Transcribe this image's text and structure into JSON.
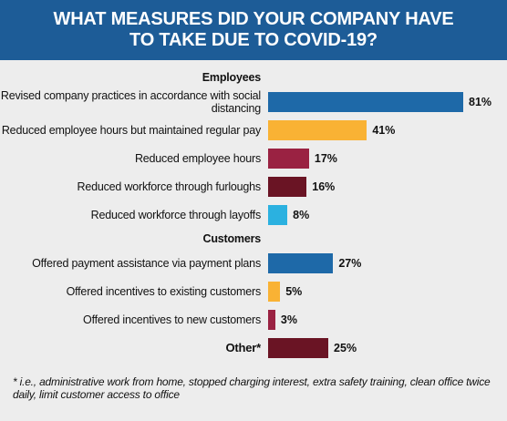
{
  "chart_data": {
    "type": "bar",
    "title": "WHAT MEASURES DID YOUR COMPANY HAVE TO TAKE DUE TO COVID-19?",
    "groups": [
      {
        "name": "Employees",
        "categories": [
          "Revised company practices in accordance with social distancing",
          "Reduced employee hours but maintained regular pay",
          "Reduced employee hours",
          "Reduced workforce through furloughs",
          "Reduced workforce through layoffs"
        ],
        "values": [
          81,
          41,
          17,
          16,
          8
        ],
        "value_labels": [
          "81%",
          "41%",
          "17%",
          "16%",
          "8%"
        ],
        "colors": [
          "#1e69a8",
          "#f9b234",
          "#9a2242",
          "#6a1424",
          "#2bb1e0"
        ]
      },
      {
        "name": "Customers",
        "categories": [
          "Offered payment assistance via payment plans",
          "Offered incentives to existing customers",
          "Offered incentives to new customers"
        ],
        "values": [
          27,
          5,
          3
        ],
        "value_labels": [
          "27%",
          "5%",
          "3%"
        ],
        "colors": [
          "#1e69a8",
          "#f9b234",
          "#9a2242"
        ]
      },
      {
        "categories": [
          "Other*"
        ],
        "values": [
          25
        ],
        "value_labels": [
          "25%"
        ],
        "colors": [
          "#6a1424"
        ]
      }
    ],
    "footnote": "* i.e., administrative work from home, stopped charging interest, extra safety training, clean office twice daily, limit customer access to office"
  }
}
